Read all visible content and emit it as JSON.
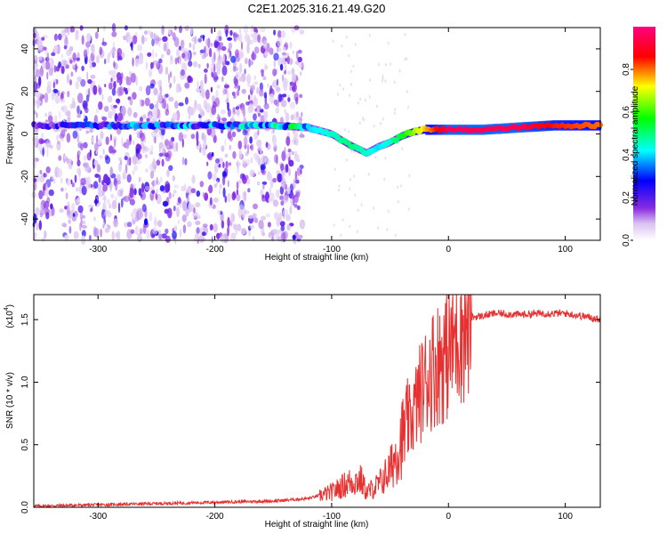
{
  "chart_data": [
    {
      "type": "heatmap",
      "title": "C2E1.2025.316.21.49.G20",
      "xlabel": "Height of straight line (km)",
      "ylabel": "Frequency (Hz)",
      "xlim": [
        -355,
        130
      ],
      "ylim": [
        -50,
        50
      ],
      "x_ticks": [
        -300,
        -200,
        -100,
        0,
        100
      ],
      "y_ticks": [
        -40,
        -20,
        0,
        20,
        40
      ],
      "colorbar": {
        "label": "Normalized spectral amplitude",
        "range": [
          0,
          1
        ],
        "ticks": [
          0.0,
          0.2,
          0.4,
          0.6,
          0.8
        ],
        "colors": [
          "#ffffff",
          "#8a2be2",
          "#0000ff",
          "#00ffff",
          "#00ff00",
          "#ffff00",
          "#ff0000",
          "#ff0080"
        ]
      },
      "signal_track": {
        "height_km": [
          -350,
          -300,
          -250,
          -200,
          -150,
          -120,
          -100,
          -85,
          -70,
          -60,
          -50,
          -40,
          -30,
          -20,
          -10,
          0,
          30,
          60,
          90,
          130
        ],
        "frequency_hz": [
          4,
          4,
          4,
          4,
          4,
          3,
          0,
          -5,
          -9,
          -6,
          -4,
          -1,
          1,
          2,
          2,
          2,
          2,
          3,
          4,
          4
        ],
        "amplitude": [
          0.2,
          0.25,
          0.3,
          0.3,
          0.35,
          0.4,
          0.45,
          0.5,
          0.45,
          0.4,
          0.45,
          0.55,
          0.65,
          0.75,
          0.85,
          0.95,
          0.95,
          0.95,
          0.85,
          0.8
        ]
      },
      "x_label_text": "Height of straight line (km)",
      "y_label_text": "Frequency (Hz)"
    },
    {
      "type": "line",
      "xlabel": "Height of straight line (km)",
      "ylabel": "SNR (10 * v/v)",
      "scale_note": "(x10",
      "scale_exp": "4",
      "scale_close": ")",
      "xlim": [
        -355,
        130
      ],
      "ylim": [
        0,
        1.7
      ],
      "x_ticks": [
        -300,
        -200,
        -100,
        0,
        100
      ],
      "y_ticks": [
        0.0,
        0.5,
        1.0,
        1.5
      ],
      "y_tick_labels": [
        "0.0",
        "0.5",
        "1.0",
        "1.5"
      ],
      "series_color": "#e83030",
      "series": [
        {
          "name": "SNR",
          "x": [
            -355,
            -300,
            -250,
            -200,
            -150,
            -120,
            -100,
            -85,
            -75,
            -70,
            -60,
            -50,
            -40,
            -30,
            -25,
            -20,
            -15,
            -10,
            -5,
            0,
            5,
            10,
            20,
            30,
            40,
            60,
            80,
            100,
            120,
            130
          ],
          "y": [
            0.01,
            0.02,
            0.03,
            0.04,
            0.05,
            0.07,
            0.12,
            0.2,
            0.22,
            0.12,
            0.18,
            0.3,
            0.55,
            0.75,
            0.9,
            1.0,
            1.1,
            1.15,
            1.2,
            1.25,
            1.35,
            1.45,
            1.52,
            1.53,
            1.55,
            1.54,
            1.55,
            1.55,
            1.52,
            1.5
          ]
        }
      ]
    }
  ]
}
